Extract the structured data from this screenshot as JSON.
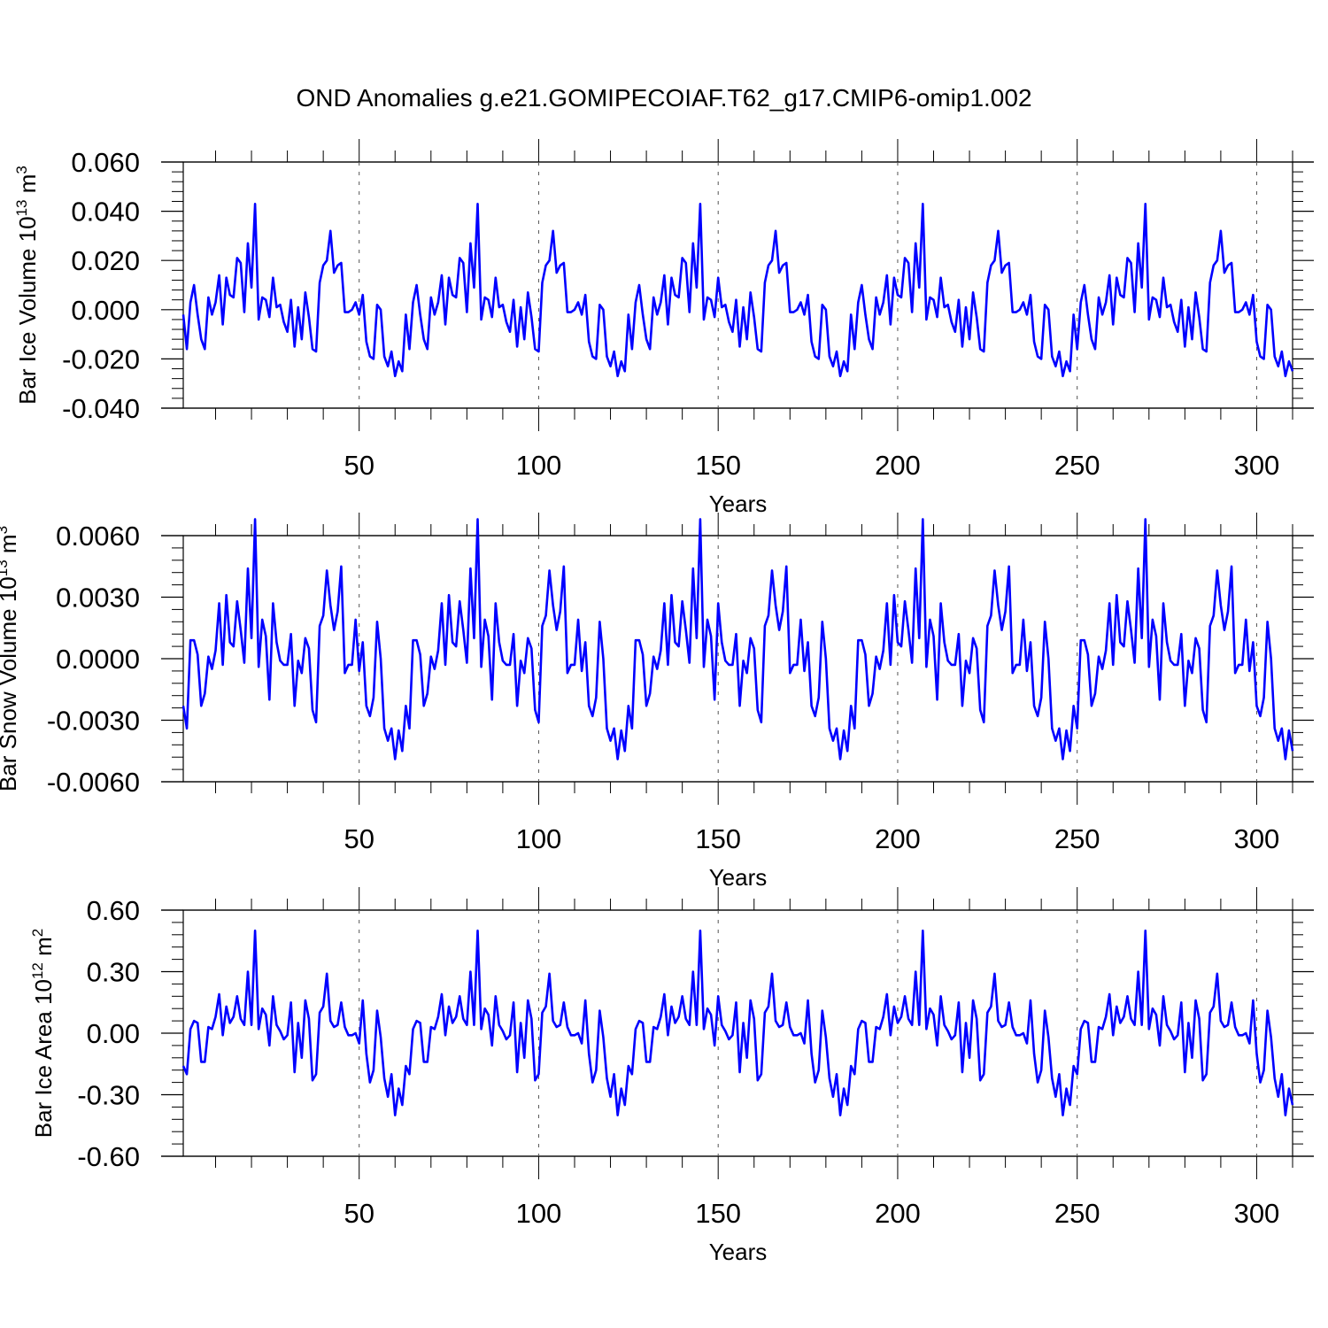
{
  "figure_title": "OND Anomalies g.e21.GOMIPECOIAF.T62_g17.CMIP6-omip1.002",
  "colors": {
    "series": "#0000ff",
    "axis": "#000000",
    "grid": "#555555"
  },
  "chart_data": [
    {
      "type": "line",
      "ylabel": {
        "text": "Bar Ice Volume 10",
        "exp": "13",
        "unit": " m",
        "unit_exp": "3"
      },
      "xlabel": "Years",
      "xlim": [
        1,
        310
      ],
      "ylim": [
        -0.04,
        0.06
      ],
      "xticks": [
        50,
        100,
        150,
        200,
        250,
        300
      ],
      "xtick_labels": [
        "50",
        "100",
        "150",
        "200",
        "250",
        "300"
      ],
      "yticks": [
        -0.04,
        -0.02,
        0.0,
        0.02,
        0.04,
        0.06
      ],
      "ytick_labels": [
        "-0.040",
        "-0.020",
        "0.000",
        "0.020",
        "0.040",
        "0.060"
      ],
      "grid_x": "dashed at major x ticks",
      "cycle_length": 62,
      "cycles": 5,
      "base_cycle": [
        -0.002,
        -0.016,
        0.003,
        0.01,
        -0.002,
        -0.012,
        -0.016,
        0.005,
        -0.002,
        0.003,
        0.014,
        -0.006,
        0.013,
        0.006,
        0.005,
        0.021,
        0.019,
        -0.001,
        0.027,
        0.009,
        0.043,
        -0.004,
        0.005,
        0.004,
        -0.003,
        0.013,
        0.001,
        0.002,
        -0.005,
        -0.009,
        0.004,
        -0.015,
        0.001,
        -0.012,
        0.007,
        -0.003,
        -0.016,
        -0.017,
        0.011,
        0.018,
        0.02,
        0.032,
        0.015,
        0.018,
        0.019,
        -0.001,
        -0.001,
        0.0,
        0.003,
        -0.002,
        0.006,
        -0.013,
        -0.019,
        -0.02,
        0.002,
        0.0,
        -0.019,
        -0.023,
        -0.017,
        -0.027,
        -0.021,
        -0.025
      ]
    },
    {
      "type": "line",
      "ylabel": {
        "text": "Bar Snow Volume 10",
        "exp": "13",
        "unit": " m",
        "unit_exp": "3"
      },
      "xlabel": "Years",
      "xlim": [
        1,
        310
      ],
      "ylim": [
        -0.006,
        0.006
      ],
      "xticks": [
        50,
        100,
        150,
        200,
        250,
        300
      ],
      "xtick_labels": [
        "50",
        "100",
        "150",
        "200",
        "250",
        "300"
      ],
      "yticks": [
        -0.006,
        -0.003,
        0.0,
        0.003,
        0.006
      ],
      "ytick_labels": [
        "-0.0060",
        "-0.0030",
        "0.0000",
        "0.0030",
        "0.0060"
      ],
      "grid_x": "dashed at major x ticks",
      "cycle_length": 62,
      "cycles": 5,
      "base_cycle": [
        -0.0023,
        -0.0034,
        0.0009,
        0.0009,
        0.0002,
        -0.0023,
        -0.0017,
        0.0001,
        -0.0005,
        0.0004,
        0.0027,
        -0.0003,
        0.0031,
        0.0008,
        0.0006,
        0.0028,
        0.0014,
        -0.0002,
        0.0044,
        0.001,
        0.0068,
        -0.0004,
        0.0019,
        0.0011,
        -0.002,
        0.0027,
        0.0008,
        -0.0001,
        -0.0003,
        -0.0003,
        0.0012,
        -0.0023,
        -0.0001,
        -0.0007,
        0.001,
        0.0005,
        -0.0025,
        -0.0031,
        0.0016,
        0.0021,
        0.0043,
        0.0026,
        0.0014,
        0.0023,
        0.0045,
        -0.0007,
        -0.0003,
        -0.0003,
        0.0019,
        -0.0006,
        0.0008,
        -0.0023,
        -0.0028,
        -0.0019,
        0.0018,
        0.0,
        -0.0034,
        -0.004,
        -0.0034,
        -0.0049,
        -0.0035,
        -0.0045
      ]
    },
    {
      "type": "line",
      "ylabel": {
        "text": "Bar Ice Area 10",
        "exp": "12",
        "unit": " m",
        "unit_exp": "2"
      },
      "xlabel": "Years",
      "xlim": [
        1,
        310
      ],
      "ylim": [
        -0.6,
        0.6
      ],
      "xticks": [
        50,
        100,
        150,
        200,
        250,
        300
      ],
      "xtick_labels": [
        "50",
        "100",
        "150",
        "200",
        "250",
        "300"
      ],
      "yticks": [
        -0.6,
        -0.3,
        0.0,
        0.3,
        0.6
      ],
      "ytick_labels": [
        "-0.60",
        "-0.30",
        "0.00",
        "0.30",
        "0.60"
      ],
      "grid_x": "dashed at major x ticks",
      "cycle_length": 62,
      "cycles": 5,
      "base_cycle": [
        -0.16,
        -0.2,
        0.02,
        0.06,
        0.05,
        -0.14,
        -0.14,
        0.03,
        0.02,
        0.08,
        0.19,
        -0.01,
        0.13,
        0.05,
        0.08,
        0.18,
        0.07,
        0.04,
        0.3,
        0.04,
        0.5,
        0.02,
        0.12,
        0.09,
        -0.06,
        0.18,
        0.04,
        0.01,
        -0.03,
        -0.01,
        0.15,
        -0.19,
        0.05,
        -0.12,
        0.16,
        0.07,
        -0.23,
        -0.2,
        0.1,
        0.13,
        0.29,
        0.06,
        0.03,
        0.04,
        0.15,
        0.03,
        -0.01,
        -0.01,
        0.0,
        -0.05,
        0.16,
        -0.1,
        -0.24,
        -0.18,
        0.11,
        -0.02,
        -0.22,
        -0.31,
        -0.2,
        -0.4,
        -0.27,
        -0.35
      ]
    }
  ]
}
